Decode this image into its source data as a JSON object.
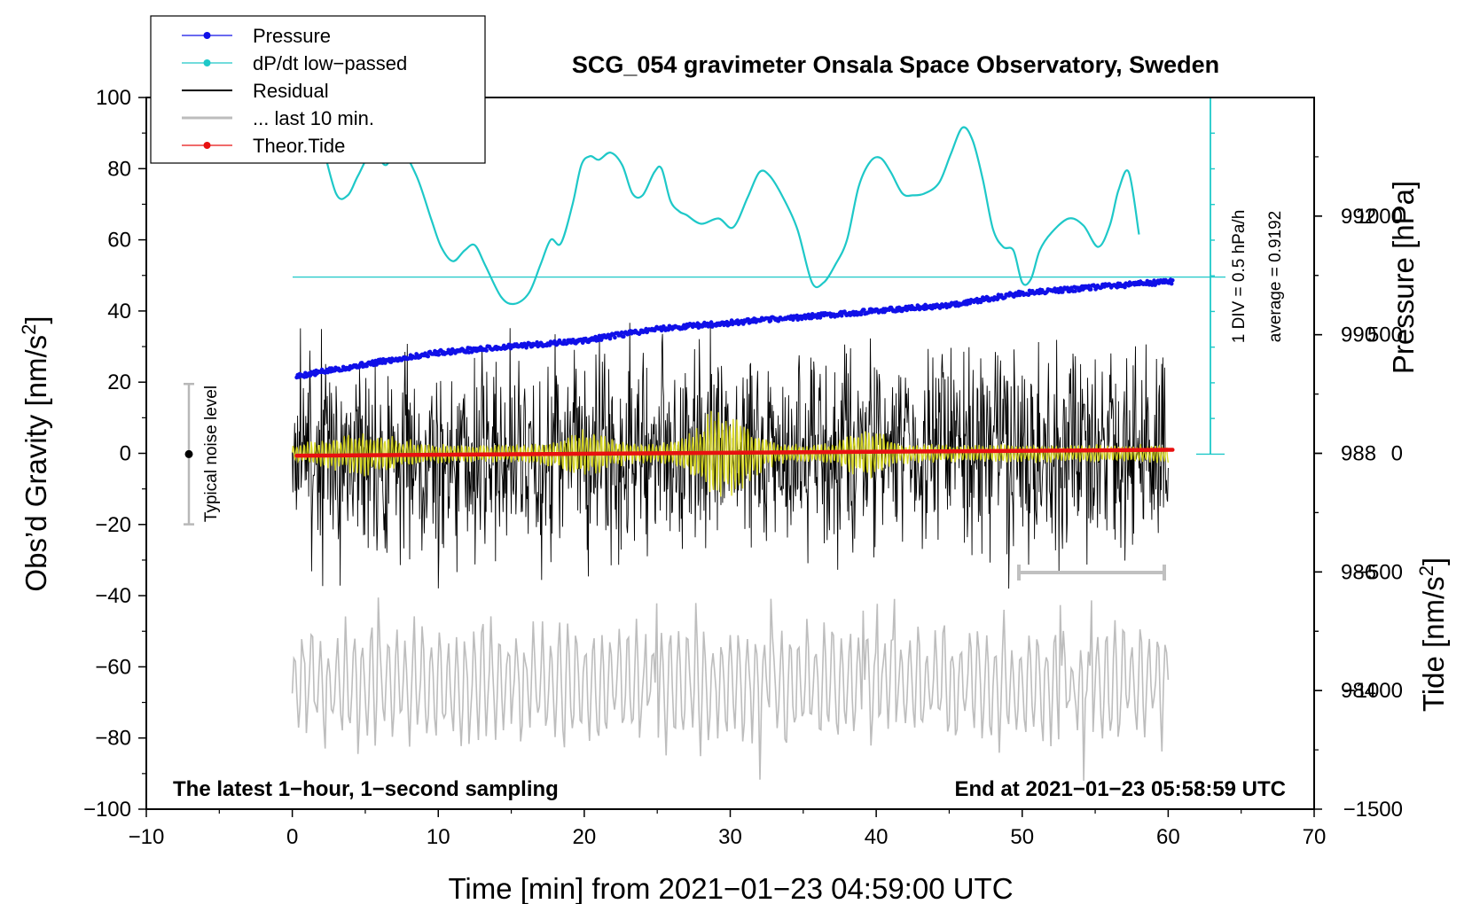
{
  "chart_data": {
    "type": "line",
    "title": "SCG_054 gravimeter Onsala Space Observatory, Sweden",
    "xlabel": "Time [min] from 2021−01−23 04:59:00 UTC",
    "ylabel_main": "Obs’d Gravity [nm/s",
    "ylabel_main_sup": "2",
    "ylabel_main_end": "]",
    "ylabel_pressure": "Pressure [hPa]",
    "ylabel_tide": "Tide [nm/s",
    "ylabel_tide_sup": "2",
    "ylabel_tide_end": "]",
    "xlim": [
      -10,
      70
    ],
    "ylim": [
      -100,
      100
    ],
    "xticks": [
      -10,
      0,
      10,
      20,
      30,
      40,
      50,
      60,
      70
    ],
    "xtick_labels": [
      "−10",
      "0",
      "10",
      "20",
      "30",
      "40",
      "50",
      "60",
      "70"
    ],
    "yticks": [
      -100,
      -80,
      -60,
      -40,
      -20,
      0,
      20,
      40,
      60,
      80,
      100
    ],
    "ytick_labels": [
      "−100",
      "−80",
      "−60",
      "−40",
      "−20",
      "0",
      "20",
      "40",
      "60",
      "80",
      "100"
    ],
    "pressure_axis": {
      "range": [
        982,
        994
      ],
      "ticks": [
        984,
        986,
        988,
        990,
        992
      ],
      "tick_labels": [
        "984",
        "986",
        "988",
        "990",
        "992"
      ]
    },
    "tide_axis": {
      "range": [
        -1500,
        1500
      ],
      "ticks": [
        -1500,
        -1000,
        -500,
        0,
        500,
        1000
      ],
      "tick_labels": [
        "−1500",
        "−1000",
        "−500",
        "0",
        "500",
        "1000"
      ]
    },
    "legend": {
      "placement": "top-left",
      "entries": [
        {
          "label": "Pressure",
          "color": "#1010e8",
          "marker": true
        },
        {
          "label": "dP/dt low−passed",
          "color": "#1ec8c8",
          "marker": true
        },
        {
          "label": "Residual",
          "color": "#000000",
          "marker": false
        },
        {
          "label": "... last 10 min.",
          "color": "#bdbdbd",
          "marker": false
        },
        {
          "label": "Theor.Tide",
          "color": "#e81010",
          "marker": true
        }
      ]
    },
    "annotations": {
      "noise_label": "Typical noise level",
      "noise_range": [
        -20,
        20
      ],
      "dpdt_scale": "1 DIV = 0.5 hPa/h",
      "dpdt_average": "average = 0.9192",
      "corner_left": "The latest 1−hour, 1−second sampling",
      "corner_right": "End at 2021−01−23 05:58:59 UTC",
      "last10_bar_minutes": [
        50,
        60
      ]
    },
    "series": [
      {
        "name": "Pressure",
        "axis": "pressure",
        "color": "#1010e8",
        "x": [
          0.3,
          5,
          10,
          15,
          20,
          25,
          30,
          35,
          40,
          45,
          50,
          55,
          60.3
        ],
        "values": [
          989.3,
          989.5,
          989.7,
          989.8,
          989.9,
          990.1,
          990.2,
          990.3,
          990.4,
          990.5,
          990.7,
          990.8,
          990.9
        ]
      },
      {
        "name": "dP/dt low−passed",
        "axis": "gravity",
        "color": "#1ec8c8",
        "x": [
          2,
          3,
          3.8,
          4.5,
          5.5,
          6.4,
          7.3,
          8.5,
          9.5,
          10.2,
          11,
          11.8,
          12.5,
          13.2,
          14.3,
          15.2,
          16.2,
          17,
          17.7,
          18.4,
          19.2,
          19.8,
          20.4,
          21,
          21.8,
          22.6,
          23.3,
          24,
          24.8,
          25.3,
          25.9,
          26.5,
          27,
          28,
          29.2,
          30.2,
          31.2,
          32,
          32.7,
          33.6,
          34.6,
          35.6,
          36.4,
          37.2,
          38,
          38.8,
          39.6,
          40.3,
          41,
          41.8,
          42.5,
          43.3,
          44.3,
          45.1,
          45.9,
          46.6,
          47.3,
          48,
          48.7,
          49.4,
          50,
          50.6,
          51.2,
          52,
          53.2,
          54.2,
          55.2,
          56,
          56.6,
          57.3,
          58
        ],
        "values": [
          88,
          73,
          72.5,
          78,
          85,
          81,
          86,
          78,
          66,
          58,
          54,
          57,
          58.5,
          53,
          44,
          42,
          45,
          53,
          60,
          59,
          70,
          81,
          83.5,
          82.5,
          84.5,
          81,
          73,
          72.5,
          79,
          80,
          71,
          68,
          67,
          64.5,
          66,
          63.5,
          72,
          79,
          78,
          72,
          63,
          48,
          48,
          53,
          60,
          75,
          82,
          83,
          79,
          73,
          72.5,
          73,
          76,
          84,
          91.5,
          88,
          77,
          63,
          58,
          57,
          48,
          49,
          57,
          62,
          66,
          64,
          58,
          64,
          74,
          79,
          61.5
        ]
      },
      {
        "name": "Residual",
        "axis": "gravity",
        "color": "#000000",
        "x": [
          0,
          60
        ],
        "values": [
          0,
          0
        ],
        "envelope": [
          -38,
          40
        ]
      },
      {
        "name": "... last 10 min.",
        "axis": "gravity",
        "color": "#bdbdbd",
        "x": [
          0,
          60
        ],
        "values": [
          -65,
          -65
        ],
        "envelope": [
          -92,
          -30
        ]
      },
      {
        "name": "Theor.Tide",
        "axis": "tide",
        "color": "#e81010",
        "x": [
          0.3,
          60.3
        ],
        "values": [
          -10,
          15
        ]
      }
    ]
  }
}
